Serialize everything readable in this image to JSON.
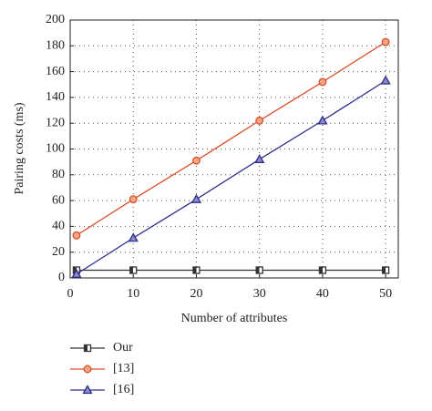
{
  "chart_data": {
    "type": "line",
    "xlabel": "Number of attributes",
    "ylabel": "Pairing costs (ms)",
    "x": [
      1,
      10,
      20,
      30,
      40,
      50
    ],
    "series": [
      {
        "name": "Our",
        "color": "#333333",
        "marker": "square",
        "values": [
          6,
          6,
          6,
          6,
          6,
          6
        ]
      },
      {
        "name": "[13]",
        "color": "#d9502c",
        "marker": "circle",
        "values": [
          33,
          61,
          91,
          122,
          152,
          183
        ]
      },
      {
        "name": "[16]",
        "color": "#2e2e8a",
        "marker": "triangle",
        "values": [
          3,
          31,
          61,
          92,
          122,
          153
        ]
      }
    ],
    "xlim": [
      0,
      52
    ],
    "xticks": [
      0,
      10,
      20,
      30,
      40,
      50
    ],
    "ylim": [
      0,
      200
    ],
    "yticks": [
      0,
      20,
      40,
      60,
      80,
      100,
      120,
      140,
      160,
      180,
      200
    ],
    "grid": true
  }
}
